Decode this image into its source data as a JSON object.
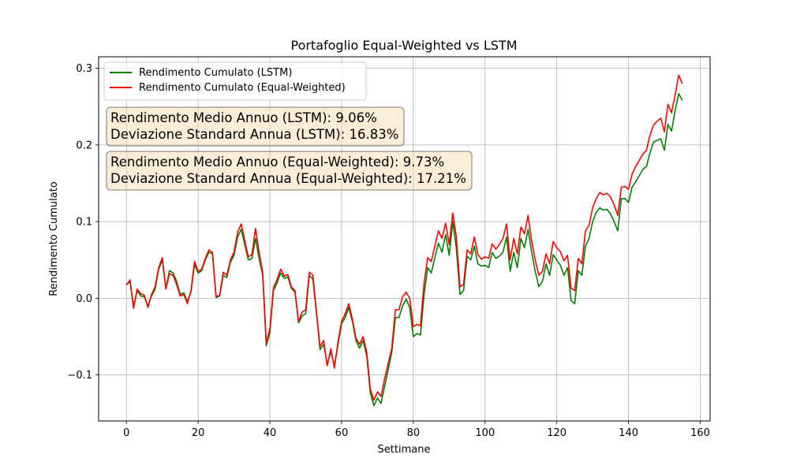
{
  "chart_data": {
    "type": "line",
    "title": "Portafoglio Equal-Weighted vs LSTM",
    "xlabel": "Settimane",
    "ylabel": "Rendimento Cumulato",
    "xlim": [
      -7.75,
      162.75
    ],
    "ylim": [
      -0.16,
      0.315
    ],
    "x_ticks": [
      0,
      20,
      40,
      60,
      80,
      100,
      120,
      140,
      160
    ],
    "y_ticks": [
      -0.1,
      0.0,
      0.1,
      0.2,
      0.3
    ],
    "x_tick_labels": [
      "0",
      "20",
      "40",
      "60",
      "80",
      "100",
      "120",
      "140",
      "160"
    ],
    "y_tick_labels": [
      "−0.1",
      "0.0",
      "0.1",
      "0.2",
      "0.3"
    ],
    "grid": true,
    "legend_position": "upper-left",
    "series": [
      {
        "name": "Rendimento Cumulato (LSTM)",
        "color": "#008000",
        "values": [
          0.018,
          0.022,
          -0.01,
          0.01,
          0.003,
          0.002,
          -0.01,
          0.003,
          0.012,
          0.038,
          0.05,
          0.013,
          0.036,
          0.033,
          0.022,
          0.005,
          0.007,
          -0.004,
          0.008,
          0.044,
          0.033,
          0.036,
          0.05,
          0.06,
          0.058,
          0.001,
          0.003,
          0.03,
          0.027,
          0.047,
          0.056,
          0.08,
          0.09,
          0.07,
          0.05,
          0.052,
          0.078,
          0.052,
          0.03,
          -0.062,
          -0.045,
          0.01,
          0.02,
          0.033,
          0.026,
          0.028,
          0.013,
          0.008,
          -0.032,
          -0.023,
          -0.02,
          0.03,
          0.025,
          -0.02,
          -0.067,
          -0.06,
          -0.086,
          -0.07,
          -0.088,
          -0.06,
          -0.033,
          -0.025,
          -0.012,
          -0.03,
          -0.055,
          -0.065,
          -0.055,
          -0.075,
          -0.123,
          -0.14,
          -0.13,
          -0.137,
          -0.115,
          -0.093,
          -0.07,
          -0.025,
          -0.025,
          -0.01,
          -0.001,
          -0.012,
          -0.05,
          -0.046,
          -0.048,
          0.005,
          0.04,
          0.033,
          0.053,
          0.072,
          0.06,
          0.083,
          0.056,
          0.1,
          0.065,
          0.005,
          0.01,
          0.055,
          0.05,
          0.068,
          0.045,
          0.042,
          0.043,
          0.04,
          0.06,
          0.052,
          0.055,
          0.06,
          0.08,
          0.035,
          0.06,
          0.04,
          0.078,
          0.066,
          0.09,
          0.06,
          0.035,
          0.015,
          0.022,
          0.045,
          0.03,
          0.057,
          0.05,
          0.043,
          0.03,
          0.04,
          -0.003,
          -0.007,
          0.036,
          0.03,
          0.068,
          0.078,
          0.1,
          0.112,
          0.118,
          0.115,
          0.116,
          0.11,
          0.1,
          0.088,
          0.13,
          0.13,
          0.125,
          0.145,
          0.152,
          0.16,
          0.168,
          0.172,
          0.19,
          0.204,
          0.206,
          0.208,
          0.193,
          0.227,
          0.218,
          0.245,
          0.267,
          0.258
        ]
      },
      {
        "name": "Rendimento Cumulato (Equal-Weighted)",
        "color": "#ff0000",
        "values": [
          0.017,
          0.024,
          -0.013,
          0.012,
          0.006,
          0.004,
          -0.012,
          0.005,
          0.015,
          0.04,
          0.053,
          0.012,
          0.032,
          0.03,
          0.018,
          0.003,
          0.005,
          -0.007,
          0.01,
          0.048,
          0.035,
          0.038,
          0.052,
          0.063,
          0.06,
          0.002,
          0.004,
          0.034,
          0.03,
          0.05,
          0.06,
          0.086,
          0.097,
          0.075,
          0.054,
          0.057,
          0.091,
          0.06,
          0.034,
          -0.058,
          -0.04,
          0.014,
          0.024,
          0.038,
          0.029,
          0.031,
          0.015,
          0.01,
          -0.03,
          -0.018,
          -0.015,
          0.034,
          0.03,
          -0.018,
          -0.063,
          -0.055,
          -0.088,
          -0.066,
          -0.091,
          -0.057,
          -0.03,
          -0.02,
          -0.007,
          -0.027,
          -0.052,
          -0.06,
          -0.05,
          -0.07,
          -0.118,
          -0.133,
          -0.122,
          -0.128,
          -0.105,
          -0.085,
          -0.065,
          -0.015,
          -0.015,
          0.002,
          0.008,
          0.0,
          -0.037,
          -0.034,
          -0.036,
          0.02,
          0.053,
          0.048,
          0.068,
          0.088,
          0.078,
          0.098,
          0.07,
          0.111,
          0.08,
          0.015,
          0.018,
          0.063,
          0.058,
          0.08,
          0.057,
          0.051,
          0.054,
          0.052,
          0.071,
          0.064,
          0.07,
          0.078,
          0.097,
          0.05,
          0.078,
          0.058,
          0.093,
          0.084,
          0.108,
          0.075,
          0.05,
          0.03,
          0.035,
          0.058,
          0.045,
          0.074,
          0.066,
          0.061,
          0.049,
          0.056,
          0.013,
          0.01,
          0.052,
          0.045,
          0.088,
          0.095,
          0.118,
          0.13,
          0.138,
          0.135,
          0.137,
          0.132,
          0.122,
          0.108,
          0.145,
          0.146,
          0.142,
          0.162,
          0.172,
          0.18,
          0.188,
          0.193,
          0.213,
          0.226,
          0.231,
          0.235,
          0.217,
          0.253,
          0.242,
          0.265,
          0.291,
          0.28
        ]
      }
    ],
    "annotations": [
      {
        "lines": [
          "Rendimento Medio Annuo (LSTM): 9.06%",
          "Deviazione Standard Annua (LSTM): 16.83%"
        ],
        "bg": "#f5deb3"
      },
      {
        "lines": [
          "Rendimento Medio Annuo (Equal-Weighted): 9.73%",
          "Deviazione Standard Annua (Equal-Weighted): 17.21%"
        ],
        "bg": "#f5deb3"
      }
    ]
  }
}
